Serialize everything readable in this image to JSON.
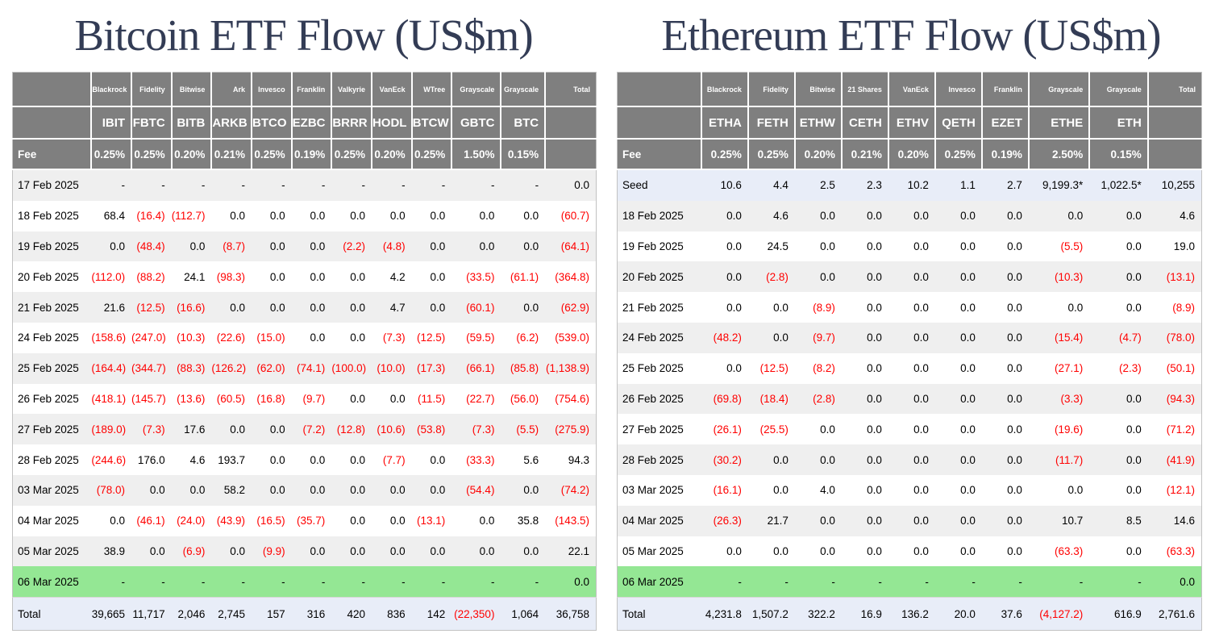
{
  "colors": {
    "title_navy": "#333c55",
    "header_gray": "#7f7f7f",
    "stripe_gray": "#efefef",
    "pending_green": "#94e794",
    "summary_blue": "#e8edf8",
    "negative_red": "#ff0000"
  },
  "tables": [
    {
      "id": "bitcoin",
      "title": "Bitcoin ETF Flow (US$m)",
      "fee_label": "Fee",
      "total_column_label": "Total",
      "issuers": [
        "Blackrock",
        "Fidelity",
        "Bitwise",
        "Ark",
        "Invesco",
        "Franklin",
        "Valkyrie",
        "VanEck",
        "WTree",
        "Grayscale",
        "Grayscale"
      ],
      "tickers": [
        "IBIT",
        "FBTC",
        "BITB",
        "ARKB",
        "BTCO",
        "EZBC",
        "BRRR",
        "HODL",
        "BTCW",
        "GBTC",
        "BTC"
      ],
      "fees": [
        "0.25%",
        "0.25%",
        "0.20%",
        "0.21%",
        "0.25%",
        "0.19%",
        "0.25%",
        "0.20%",
        "0.25%",
        "1.50%",
        "0.15%"
      ],
      "rows": [
        {
          "label": "17 Feb 2025",
          "bg": "stripe",
          "values": [
            "-",
            "-",
            "-",
            "-",
            "-",
            "-",
            "-",
            "-",
            "-",
            "-",
            "-",
            "0.0"
          ]
        },
        {
          "label": "18 Feb 2025",
          "bg": "plain",
          "values": [
            "68.4",
            "(16.4)",
            "(112.7)",
            "0.0",
            "0.0",
            "0.0",
            "0.0",
            "0.0",
            "0.0",
            "0.0",
            "0.0",
            "(60.7)"
          ]
        },
        {
          "label": "19 Feb 2025",
          "bg": "stripe",
          "values": [
            "0.0",
            "(48.4)",
            "0.0",
            "(8.7)",
            "0.0",
            "0.0",
            "(2.2)",
            "(4.8)",
            "0.0",
            "0.0",
            "0.0",
            "(64.1)"
          ]
        },
        {
          "label": "20 Feb 2025",
          "bg": "plain",
          "values": [
            "(112.0)",
            "(88.2)",
            "24.1",
            "(98.3)",
            "0.0",
            "0.0",
            "0.0",
            "4.2",
            "0.0",
            "(33.5)",
            "(61.1)",
            "(364.8)"
          ]
        },
        {
          "label": "21 Feb 2025",
          "bg": "stripe",
          "values": [
            "21.6",
            "(12.5)",
            "(16.6)",
            "0.0",
            "0.0",
            "0.0",
            "0.0",
            "4.7",
            "0.0",
            "(60.1)",
            "0.0",
            "(62.9)"
          ]
        },
        {
          "label": "24 Feb 2025",
          "bg": "plain",
          "values": [
            "(158.6)",
            "(247.0)",
            "(10.3)",
            "(22.6)",
            "(15.0)",
            "0.0",
            "0.0",
            "(7.3)",
            "(12.5)",
            "(59.5)",
            "(6.2)",
            "(539.0)"
          ]
        },
        {
          "label": "25 Feb 2025",
          "bg": "stripe",
          "values": [
            "(164.4)",
            "(344.7)",
            "(88.3)",
            "(126.2)",
            "(62.0)",
            "(74.1)",
            "(100.0)",
            "(10.0)",
            "(17.3)",
            "(66.1)",
            "(85.8)",
            "(1,138.9)"
          ]
        },
        {
          "label": "26 Feb 2025",
          "bg": "plain",
          "values": [
            "(418.1)",
            "(145.7)",
            "(13.6)",
            "(60.5)",
            "(16.8)",
            "(9.7)",
            "0.0",
            "0.0",
            "(11.5)",
            "(22.7)",
            "(56.0)",
            "(754.6)"
          ]
        },
        {
          "label": "27 Feb 2025",
          "bg": "stripe",
          "values": [
            "(189.0)",
            "(7.3)",
            "17.6",
            "0.0",
            "0.0",
            "(7.2)",
            "(12.8)",
            "(10.6)",
            "(53.8)",
            "(7.3)",
            "(5.5)",
            "(275.9)"
          ]
        },
        {
          "label": "28 Feb 2025",
          "bg": "plain",
          "values": [
            "(244.6)",
            "176.0",
            "4.6",
            "193.7",
            "0.0",
            "0.0",
            "0.0",
            "(7.7)",
            "0.0",
            "(33.3)",
            "5.6",
            "94.3"
          ]
        },
        {
          "label": "03 Mar 2025",
          "bg": "stripe",
          "values": [
            "(78.0)",
            "0.0",
            "0.0",
            "58.2",
            "0.0",
            "0.0",
            "0.0",
            "0.0",
            "0.0",
            "(54.4)",
            "0.0",
            "(74.2)"
          ]
        },
        {
          "label": "04 Mar 2025",
          "bg": "plain",
          "values": [
            "0.0",
            "(46.1)",
            "(24.0)",
            "(43.9)",
            "(16.5)",
            "(35.7)",
            "0.0",
            "0.0",
            "(13.1)",
            "0.0",
            "35.8",
            "(143.5)"
          ]
        },
        {
          "label": "05 Mar 2025",
          "bg": "stripe",
          "values": [
            "38.9",
            "0.0",
            "(6.9)",
            "0.0",
            "(9.9)",
            "0.0",
            "0.0",
            "0.0",
            "0.0",
            "0.0",
            "0.0",
            "22.1"
          ]
        },
        {
          "label": "06 Mar 2025",
          "bg": "pending",
          "values": [
            "-",
            "-",
            "-",
            "-",
            "-",
            "-",
            "-",
            "-",
            "-",
            "-",
            "-",
            "0.0"
          ]
        }
      ],
      "total_row": {
        "label": "Total",
        "bg": "summary",
        "values": [
          "39,665",
          "11,717",
          "2,046",
          "2,745",
          "157",
          "316",
          "420",
          "836",
          "142",
          "(22,350)",
          "1,064",
          "36,758"
        ]
      }
    },
    {
      "id": "ethereum",
      "title": "Ethereum ETF Flow (US$m)",
      "fee_label": "Fee",
      "total_column_label": "Total",
      "issuers": [
        "Blackrock",
        "Fidelity",
        "Bitwise",
        "21 Shares",
        "VanEck",
        "Invesco",
        "Franklin",
        "Grayscale",
        "Grayscale"
      ],
      "tickers": [
        "ETHA",
        "FETH",
        "ETHW",
        "CETH",
        "ETHV",
        "QETH",
        "EZET",
        "ETHE",
        "ETH"
      ],
      "fees": [
        "0.25%",
        "0.25%",
        "0.20%",
        "0.21%",
        "0.20%",
        "0.25%",
        "0.19%",
        "2.50%",
        "0.15%"
      ],
      "rows": [
        {
          "label": "Seed",
          "bg": "summary",
          "values": [
            "10.6",
            "4.4",
            "2.5",
            "2.3",
            "10.2",
            "1.1",
            "2.7",
            "9,199.3*",
            "1,022.5*",
            "10,255"
          ]
        },
        {
          "label": "18 Feb 2025",
          "bg": "stripe",
          "values": [
            "0.0",
            "4.6",
            "0.0",
            "0.0",
            "0.0",
            "0.0",
            "0.0",
            "0.0",
            "0.0",
            "4.6"
          ]
        },
        {
          "label": "19 Feb 2025",
          "bg": "plain",
          "values": [
            "0.0",
            "24.5",
            "0.0",
            "0.0",
            "0.0",
            "0.0",
            "0.0",
            "(5.5)",
            "0.0",
            "19.0"
          ]
        },
        {
          "label": "20 Feb 2025",
          "bg": "stripe",
          "values": [
            "0.0",
            "(2.8)",
            "0.0",
            "0.0",
            "0.0",
            "0.0",
            "0.0",
            "(10.3)",
            "0.0",
            "(13.1)"
          ]
        },
        {
          "label": "21 Feb 2025",
          "bg": "plain",
          "values": [
            "0.0",
            "0.0",
            "(8.9)",
            "0.0",
            "0.0",
            "0.0",
            "0.0",
            "0.0",
            "0.0",
            "(8.9)"
          ]
        },
        {
          "label": "24 Feb 2025",
          "bg": "stripe",
          "values": [
            "(48.2)",
            "0.0",
            "(9.7)",
            "0.0",
            "0.0",
            "0.0",
            "0.0",
            "(15.4)",
            "(4.7)",
            "(78.0)"
          ]
        },
        {
          "label": "25 Feb 2025",
          "bg": "plain",
          "values": [
            "0.0",
            "(12.5)",
            "(8.2)",
            "0.0",
            "0.0",
            "0.0",
            "0.0",
            "(27.1)",
            "(2.3)",
            "(50.1)"
          ]
        },
        {
          "label": "26 Feb 2025",
          "bg": "stripe",
          "values": [
            "(69.8)",
            "(18.4)",
            "(2.8)",
            "0.0",
            "0.0",
            "0.0",
            "0.0",
            "(3.3)",
            "0.0",
            "(94.3)"
          ]
        },
        {
          "label": "27 Feb 2025",
          "bg": "plain",
          "values": [
            "(26.1)",
            "(25.5)",
            "0.0",
            "0.0",
            "0.0",
            "0.0",
            "0.0",
            "(19.6)",
            "0.0",
            "(71.2)"
          ]
        },
        {
          "label": "28 Feb 2025",
          "bg": "stripe",
          "values": [
            "(30.2)",
            "0.0",
            "0.0",
            "0.0",
            "0.0",
            "0.0",
            "0.0",
            "(11.7)",
            "0.0",
            "(41.9)"
          ]
        },
        {
          "label": "03 Mar 2025",
          "bg": "plain",
          "values": [
            "(16.1)",
            "0.0",
            "4.0",
            "0.0",
            "0.0",
            "0.0",
            "0.0",
            "0.0",
            "0.0",
            "(12.1)"
          ]
        },
        {
          "label": "04 Mar 2025",
          "bg": "stripe",
          "values": [
            "(26.3)",
            "21.7",
            "0.0",
            "0.0",
            "0.0",
            "0.0",
            "0.0",
            "10.7",
            "8.5",
            "14.6"
          ]
        },
        {
          "label": "05 Mar 2025",
          "bg": "plain",
          "values": [
            "0.0",
            "0.0",
            "0.0",
            "0.0",
            "0.0",
            "0.0",
            "0.0",
            "(63.3)",
            "0.0",
            "(63.3)"
          ]
        },
        {
          "label": "06 Mar 2025",
          "bg": "pending",
          "values": [
            "-",
            "-",
            "-",
            "-",
            "-",
            "-",
            "-",
            "-",
            "-",
            "0.0"
          ]
        }
      ],
      "total_row": {
        "label": "Total",
        "bg": "summary",
        "values": [
          "4,231.8",
          "1,507.2",
          "322.2",
          "16.9",
          "136.2",
          "20.0",
          "37.6",
          "(4,127.2)",
          "616.9",
          "2,761.6"
        ]
      }
    }
  ]
}
